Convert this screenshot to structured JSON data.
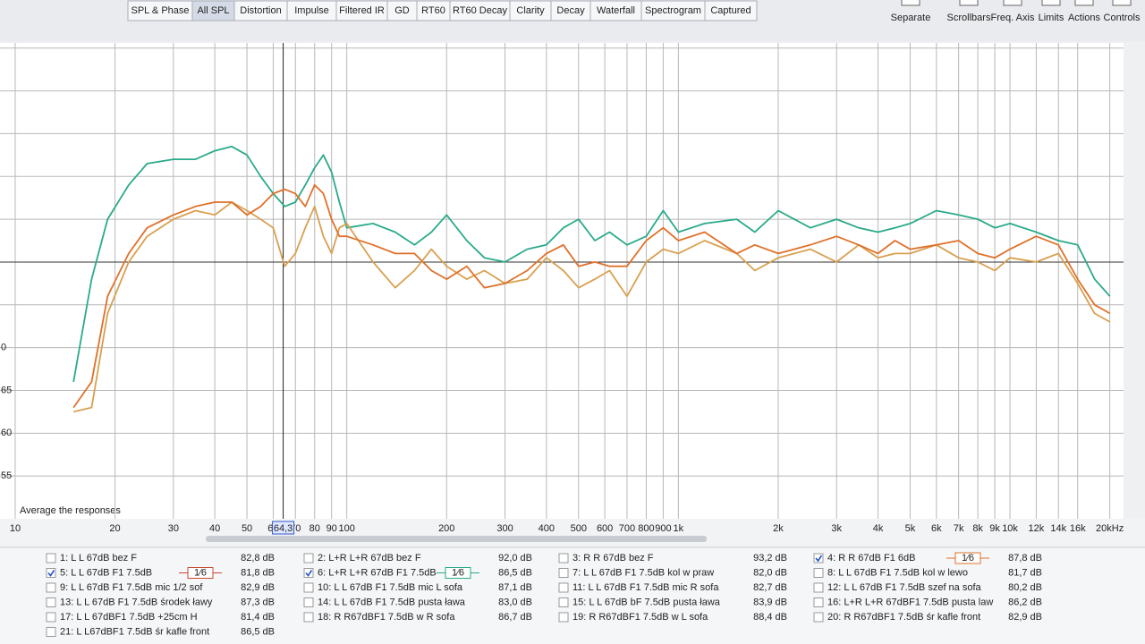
{
  "toolbar": {
    "tabs": [
      "SPL & Phase",
      "All SPL",
      "Distortion",
      "Impulse",
      "Filtered IR",
      "GD",
      "RT60",
      "RT60 Decay",
      "Clarity",
      "Decay",
      "Waterfall",
      "Spectrogram",
      "Captured"
    ],
    "active_tab": 1,
    "controls": [
      "Separate",
      "Scrollbars",
      "Freq. Axis",
      "Limits",
      "Actions",
      "Controls"
    ]
  },
  "chart_data": {
    "type": "line",
    "xscale": "log",
    "x": [
      15,
      17,
      19,
      22,
      25,
      30,
      35,
      40,
      45,
      50,
      55,
      60,
      65,
      70,
      75,
      80,
      85,
      90,
      95,
      100,
      120,
      140,
      160,
      180,
      200,
      230,
      260,
      300,
      350,
      400,
      450,
      500,
      560,
      620,
      700,
      800,
      900,
      1000,
      1200,
      1500,
      1700,
      2000,
      2500,
      3000,
      3500,
      4000,
      4500,
      5000,
      6000,
      7000,
      8000,
      9000,
      10000,
      12000,
      14000,
      16000,
      18000,
      20000
    ],
    "series": [
      {
        "color": "#2aaa8a",
        "values": [
          66,
          78,
          85,
          89,
          91.5,
          92,
          92,
          93,
          93.5,
          92.5,
          90,
          88,
          86.5,
          87,
          89,
          91,
          92.5,
          90.5,
          87,
          84,
          84.5,
          83.5,
          82,
          83.5,
          85.5,
          82.5,
          80.5,
          80,
          81.5,
          82,
          84,
          85,
          82.5,
          83.5,
          82,
          83,
          86,
          83.5,
          84.5,
          85,
          83.5,
          86,
          84,
          85,
          84,
          83.5,
          84,
          84.5,
          86,
          85.5,
          85,
          84,
          84.5,
          83.5,
          82.5,
          82,
          78,
          76
        ]
      },
      {
        "color": "#d8a050",
        "values": [
          62.5,
          63,
          74,
          80,
          83,
          85,
          86,
          85.5,
          87,
          86,
          85,
          84,
          79.5,
          81,
          84,
          86.5,
          83,
          81,
          84,
          84.5,
          80,
          77,
          79,
          81.5,
          79.5,
          78,
          79,
          77.5,
          78,
          80.5,
          79,
          77,
          78,
          79,
          76,
          80,
          81.5,
          81,
          82.5,
          81,
          79,
          80.5,
          81.5,
          80,
          82,
          80.5,
          81,
          81,
          82,
          80.5,
          80,
          79,
          80.5,
          80,
          81,
          77.5,
          74,
          73
        ]
      },
      {
        "color": "#e0702a",
        "values": [
          63,
          66,
          76,
          81,
          84,
          85.5,
          86.5,
          87,
          87,
          85.5,
          86.5,
          88,
          88.5,
          88,
          86.5,
          89,
          88,
          85,
          83,
          83,
          82,
          81,
          81,
          79,
          78,
          79.5,
          77,
          77.5,
          79,
          81,
          82,
          79.5,
          80,
          79.5,
          79.5,
          82.5,
          84,
          82.5,
          83.5,
          81,
          82,
          81,
          82,
          83,
          82,
          81,
          82.5,
          81.5,
          82,
          82.5,
          81,
          80.5,
          81.5,
          83,
          82,
          78,
          75,
          74
        ]
      }
    ],
    "xlim": [
      9,
      22000
    ],
    "ylim": [
      50,
      105.6
    ],
    "xticks": [
      10,
      20,
      30,
      40,
      50,
      60,
      70,
      80,
      90,
      100,
      200,
      300,
      400,
      500,
      600,
      700,
      800,
      900,
      {
        "value": 1000,
        "label": "1k"
      },
      {
        "value": 2000,
        "label": "2k"
      },
      {
        "value": 3000,
        "label": "3k"
      },
      {
        "value": 4000,
        "label": "4k"
      },
      {
        "value": 5000,
        "label": "5k"
      },
      {
        "value": 6000,
        "label": "6k"
      },
      {
        "value": 7000,
        "label": "7k"
      },
      {
        "value": 8000,
        "label": "8k"
      },
      {
        "value": 9000,
        "label": "9k"
      },
      {
        "value": 10000,
        "label": "10k"
      },
      {
        "value": 12000,
        "label": "12k"
      },
      {
        "value": 14000,
        "label": "14k"
      },
      {
        "value": 16000,
        "label": "16k"
      },
      {
        "value": 20000,
        "label": "20kHz"
      }
    ],
    "yticks": [
      55,
      60,
      65,
      {
        "value": 70,
        "label": "0"
      }
    ],
    "ygrid": [
      75,
      80,
      85,
      90,
      95,
      100,
      105
    ],
    "reference_line": 80,
    "cursor": {
      "value": 64.3,
      "label": "64,3"
    },
    "annotation": "Average the responses",
    "grid": true
  },
  "legend": {
    "smoothing": "1⁄6",
    "columns": [
      [
        {
          "label": "1: L L 67dB bez F",
          "level": "82,8 dB",
          "color": "#c83030",
          "checked": false
        },
        {
          "label": "5: L L 67dB F1 7.5dB",
          "level": "81,8 dB",
          "color": "#c84a30",
          "checked": true
        },
        {
          "label": "9: L L 67dB F1 7.5dB  mic 1/2 sof",
          "level": "82,9 dB",
          "color": "#8a40a8",
          "checked": false
        },
        {
          "label": "13: L L 67dB F1 7.5dB  środek ławy",
          "level": "87,3 dB",
          "color": "#3060b8",
          "checked": false
        },
        {
          "label": "17: L L 67dBF1 7.5dB  +25cm H",
          "level": "81,4 dB",
          "color": "#a83090",
          "checked": false
        },
        {
          "label": "21: L L67dBF1 7.5dB śr kafle front",
          "level": "86,5 dB",
          "color": "#b03a2a",
          "checked": false
        }
      ],
      [
        {
          "label": "2: L+R L+R  67dB bez F",
          "level": "92,0 dB",
          "color": "#707070",
          "checked": false
        },
        {
          "label": "6: L+R L+R  67dB F1 7.5dB",
          "level": "86,5 dB",
          "color": "#2aaa8a",
          "checked": true
        },
        {
          "label": "10: L L 67dB F1 7.5dB  mic L sofa",
          "level": "87,1 dB",
          "color": "#9040b0",
          "checked": false
        },
        {
          "label": "14: L L 67dB F1 7.5dB  pusta ława",
          "level": "83,0 dB",
          "color": "#c8903a",
          "checked": false
        },
        {
          "label": "18: R R67dBF1 7.5dB w R sofa",
          "level": "86,7 dB",
          "color": "#2a90a8",
          "checked": false
        }
      ],
      [
        {
          "label": "3: R R  67dB bez F",
          "level": "93,2 dB",
          "color": "#3060c0",
          "checked": false
        },
        {
          "label": "7: L L 67dB F1 7.5dB  kol w praw",
          "level": "82,0 dB",
          "color": "#9a50b8",
          "checked": false
        },
        {
          "label": "11: L L 67dB F1 7.5dB  mic R sofa",
          "level": "82,7 dB",
          "color": "#c83030",
          "checked": false
        },
        {
          "label": "15: L L 67dB bF 7.5dB  pusta ława",
          "level": "83,9 dB",
          "color": "#c8a060",
          "checked": false
        },
        {
          "label": "19: R R67dBF1 7.5dB w L sofa",
          "level": "88,4 dB",
          "color": "#3070b8",
          "checked": false
        }
      ],
      [
        {
          "label": "4: R R  67dB F1 6dB",
          "level": "87,8 dB",
          "color": "#e0702a",
          "checked": true
        },
        {
          "label": "8: L L 67dB F1 7.5dB  kol w lewo",
          "level": "81,7 dB",
          "color": "#4070b8",
          "checked": false
        },
        {
          "label": "12: L L 67dB F1 7.5dB  szef na sofa",
          "level": "80,2 dB",
          "color": "#505050",
          "checked": false
        },
        {
          "label": "16: L+R L+R 67dBF1 7.5dB  pusta law",
          "level": "86,2 dB",
          "color": "#2aa0a0",
          "checked": false
        },
        {
          "label": "20: R R67dBF1 7.5dB śr kafle front",
          "level": "82,9 dB",
          "color": "#a040a8",
          "checked": false
        }
      ]
    ]
  }
}
